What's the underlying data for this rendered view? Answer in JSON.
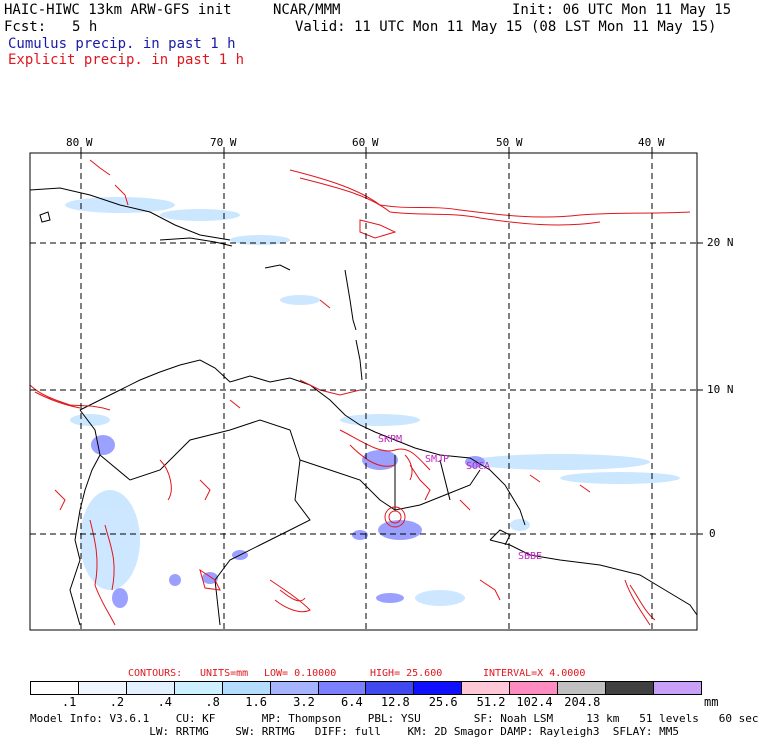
{
  "header": {
    "model_title": "HAIC-HIWC 13km ARW-GFS init",
    "org": "NCAR/MMM",
    "init": "Init: 06 UTC Mon 11 May 15",
    "fcst_label": "Fcst:",
    "fcst_value": "5 h",
    "valid": "Valid: 11 UTC Mon 11 May 15 (08 LST Mon 11 May 15)",
    "cumulus_label": "Cumulus precip. in past 1 h",
    "explicit_label": "Explicit precip. in past 1 h"
  },
  "colors": {
    "cumulus": "#1a1aa8",
    "explicit": "#e0161d",
    "station": "#c020c0"
  },
  "map": {
    "lon_labels": [
      "80 W",
      "70 W",
      "60 W",
      "50 W",
      "40 W"
    ],
    "lat_labels": [
      "20 N",
      "10 N",
      "0"
    ],
    "stations": [
      "SKPM",
      "SMJP",
      "SOCA",
      "SBBE"
    ]
  },
  "contours": {
    "label": "CONTOURS:",
    "units": "UNITS=mm",
    "low": "LOW= 0.10000",
    "high": "HIGH= 25.600",
    "interval": "INTERVAL=X 4.0000"
  },
  "legend": {
    "unit": "mm",
    "bins": [
      {
        "label": ".1",
        "color": "#ffffff"
      },
      {
        "label": ".2",
        "color": "#f0f6ff"
      },
      {
        "label": ".4",
        "color": "#e2f0ff"
      },
      {
        "label": ".8",
        "color": "#ccf0ff"
      },
      {
        "label": "1.6",
        "color": "#b3dcff"
      },
      {
        "label": "3.2",
        "color": "#a6b4ff"
      },
      {
        "label": "6.4",
        "color": "#7c80ff"
      },
      {
        "label": "12.8",
        "color": "#4048f0"
      },
      {
        "label": "25.6",
        "color": "#1010ff"
      },
      {
        "label": "51.2",
        "color": "#ffc8d8"
      },
      {
        "label": "102.4",
        "color": "#ff8cc0"
      },
      {
        "label": "204.8",
        "color": "#c0c0c0"
      },
      {
        "label": "",
        "color": "#404040"
      },
      {
        "label": "",
        "color": "#c8a0f8"
      }
    ]
  },
  "model_info": {
    "line1": "Model Info: V3.6.1    CU: KF       MP: Thompson    PBL: YSU        SF: Noah LSM     13 km   51 levels   60 sec",
    "line2": "                  LW: RRTMG    SW: RRTMG   DIFF: full    KM: 2D Smagor DAMP: Rayleigh3  SFLAY: MM5"
  }
}
